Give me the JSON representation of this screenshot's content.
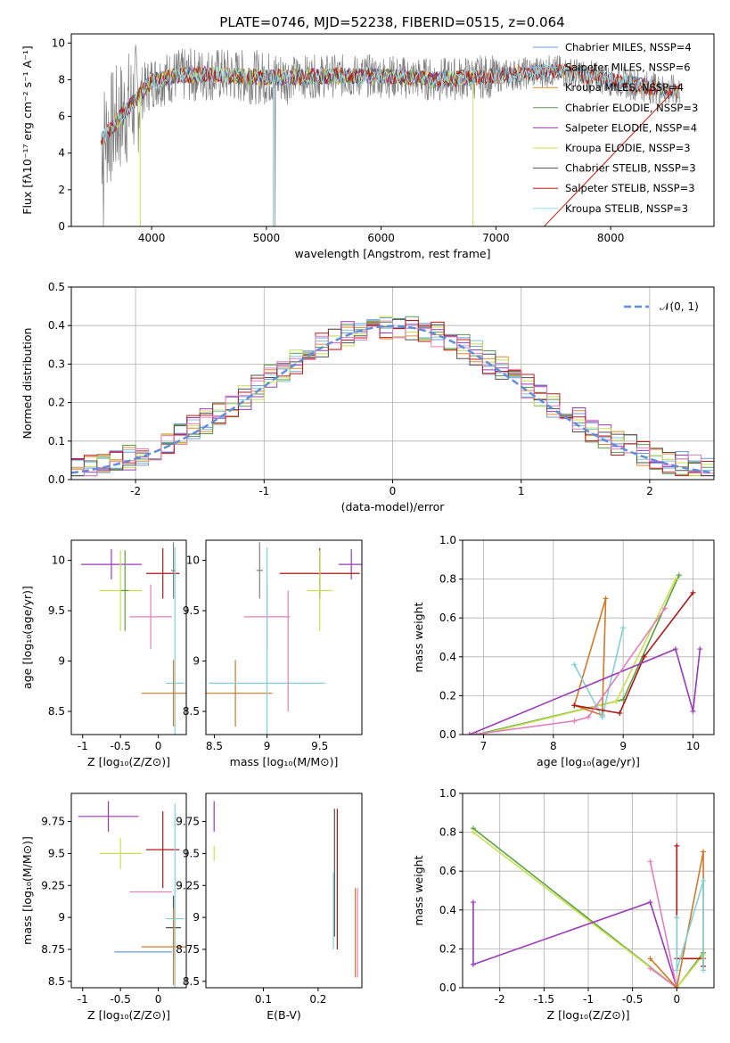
{
  "figure_title": "PLATE=0746, MJD=52238, FIBERID=0515, z=0.064",
  "colors": {
    "chabrier_miles": "#6a9bd8",
    "salpeter_miles": "#82c3d9",
    "kroupa_miles": "#e08a30",
    "chabrier_elodie": "#5a9a50",
    "salpeter_elodie": "#9a3ab8",
    "kroupa_elodie": "#c8e050",
    "chabrier_stelib": "#505050",
    "salpeter_stelib": "#c01818",
    "kroupa_stelib": "#a0dcea",
    "data": "#808080",
    "pink": "#e27fbf",
    "cyan": "#80d0d8",
    "olive": "#a8c050",
    "orange": "#cf7a2a",
    "purple": "#9a3ab8",
    "darkred": "#aa1818",
    "green": "#5aa040",
    "lime": "#c8e050",
    "gauss": "#5f8fd8"
  },
  "chart_data": [
    {
      "id": "spectrum",
      "type": "line",
      "title": "PLATE=0746, MJD=52238, FIBERID=0515, z=0.064",
      "xlabel": "wavelength [Angstrom, rest frame]",
      "ylabel": "Flux [fλ10⁻¹⁷ erg cm⁻² s⁻¹ A⁻¹]",
      "xlim": [
        3300,
        8900
      ],
      "ylim": [
        0,
        10.5
      ],
      "xticks": [
        4000,
        5000,
        6000,
        7000,
        8000
      ],
      "yticks": [
        0,
        2,
        4,
        6,
        8,
        10
      ],
      "legend_position": "right",
      "legend": [
        "Chabrier MILES, N_SSP=4",
        "Salpeter MILES, N_SSP=6",
        "Kroupa MILES, N_SSP=4",
        "Chabrier ELODIE, N_SSP=3",
        "Salpeter ELODIE, N_SSP=4",
        "Kroupa ELODIE, N_SSP=3",
        "Chabrier STELIB, N_SSP=3",
        "Salpeter STELIB, N_SSP=3",
        "Kroupa STELIB, N_SSP=3"
      ],
      "continuum": [
        [
          3600,
          5.0
        ],
        [
          3800,
          6.5
        ],
        [
          4000,
          7.9
        ],
        [
          4200,
          8.2
        ],
        [
          4500,
          8.3
        ],
        [
          5000,
          8.1
        ],
        [
          5500,
          8.2
        ],
        [
          6000,
          8.2
        ],
        [
          6500,
          8.0
        ],
        [
          7000,
          8.2
        ],
        [
          7500,
          8.5
        ],
        [
          8000,
          8.0
        ],
        [
          8500,
          7.4
        ]
      ]
    },
    {
      "id": "residual-hist",
      "type": "bar",
      "xlabel": "(data-model)/error",
      "ylabel": "Normed distribution",
      "xlim": [
        -2.5,
        2.5
      ],
      "ylim": [
        0,
        0.5
      ],
      "xticks": [
        -2,
        -1,
        0,
        1,
        2
      ],
      "yticks": [
        0.0,
        0.1,
        0.2,
        0.3,
        0.4,
        0.5
      ],
      "grid": true,
      "legend": [
        "N(0,1)"
      ],
      "legend_position": "top-right"
    },
    {
      "id": "age-vs-z",
      "type": "scatter",
      "xlabel": "Z [log₁₀(Z/Z⊙)]",
      "ylabel": "age  [log₁₀(age/yr)]",
      "xlim": [
        -1.15,
        0.37
      ],
      "ylim": [
        8.27,
        10.2
      ],
      "xticks": [
        -1.0,
        -0.5,
        0.0
      ],
      "yticks": [
        8.5,
        9.0,
        9.5,
        10.0
      ],
      "points": [
        {
          "x": -0.62,
          "y": 9.96,
          "xerr": 0.4,
          "yerr": 0.15,
          "color": "#9a3ab8"
        },
        {
          "x": -0.5,
          "y": 9.7,
          "xerr": 0.28,
          "yerr": 0.4,
          "color": "#c8e050"
        },
        {
          "x": -0.44,
          "y": 9.7,
          "xerr": 0.05,
          "yerr": 0.4,
          "color": "#5aa040"
        },
        {
          "x": -0.1,
          "y": 9.44,
          "xerr": 0.28,
          "yerr": 0.32,
          "color": "#e27fbf"
        },
        {
          "x": 0.06,
          "y": 9.87,
          "xerr": 0.22,
          "yerr": 0.25,
          "color": "#aa1818"
        },
        {
          "x": 0.2,
          "y": 9.9,
          "xerr": 0.03,
          "yerr": 0.28,
          "color": "#808080"
        },
        {
          "x": 0.22,
          "y": 8.78,
          "xerr": 0.12,
          "yerr": 1.35,
          "color": "#80d0d8"
        },
        {
          "x": 0.2,
          "y": 8.68,
          "xerr": 0.42,
          "yerr": 0.33,
          "color": "#cf7a2a"
        }
      ]
    },
    {
      "id": "age-vs-mass",
      "type": "scatter",
      "xlabel": "mass [log₁₀(M/M⊙)]",
      "ylabel": "",
      "xlim": [
        8.42,
        9.9
      ],
      "ylim": [
        8.27,
        10.2
      ],
      "xticks": [
        8.5,
        9.0,
        9.5
      ],
      "yticks": [
        8.5,
        9.0,
        9.5,
        10.0
      ],
      "points": [
        {
          "x": 9.8,
          "y": 9.96,
          "xerr": 0.12,
          "yerr": 0.15,
          "color": "#9a3ab8"
        },
        {
          "x": 9.5,
          "y": 9.87,
          "xerr": 0.38,
          "yerr": 0.25,
          "color": "#aa1818"
        },
        {
          "x": 9.5,
          "y": 9.7,
          "xerr": 0.12,
          "yerr": 0.4,
          "color": "#c8e050"
        },
        {
          "x": 9.0,
          "y": 9.44,
          "xerr": 0.22,
          "yerr": 0.32,
          "color": "#e27fbf"
        },
        {
          "x": 8.7,
          "y": 8.68,
          "xerr": 0.35,
          "yerr": 0.33,
          "color": "#cf7a2a"
        },
        {
          "x": 8.93,
          "y": 9.9,
          "xerr": 0.03,
          "yerr": 0.28,
          "color": "#808080"
        },
        {
          "x": 9.0,
          "y": 8.78,
          "xerr": 0.55,
          "yerr": 1.35,
          "color": "#80d0d8"
        },
        {
          "x": 9.2,
          "y": 9.1,
          "xerr": 0.0,
          "yerr": 0.6,
          "color": "#e27fbf"
        }
      ]
    },
    {
      "id": "weight-vs-age",
      "type": "line",
      "xlabel": "age  [log₁₀(age/yr)]",
      "ylabel": "mass weight",
      "xlim": [
        6.7,
        10.3
      ],
      "ylim": [
        0,
        1.0
      ],
      "xticks": [
        7,
        8,
        9,
        10
      ],
      "yticks": [
        0.0,
        0.2,
        0.4,
        0.6,
        0.8,
        1.0
      ],
      "grid": true,
      "series": [
        {
          "color": "#5aa040",
          "x": [
            6.9,
            9.0,
            9.8
          ],
          "y": [
            0.0,
            0.18,
            0.82
          ]
        },
        {
          "color": "#c8e050",
          "x": [
            6.95,
            8.9,
            9.75
          ],
          "y": [
            0.0,
            0.17,
            0.8
          ]
        },
        {
          "color": "#cf7a2a",
          "x": [
            8.3,
            8.75,
            8.7,
            8.3
          ],
          "y": [
            0.15,
            0.7,
            0.1,
            0.15
          ]
        },
        {
          "color": "#80d0d8",
          "x": [
            8.3,
            8.7,
            9.0,
            8.7
          ],
          "y": [
            0.36,
            0.09,
            0.55,
            0.09
          ]
        },
        {
          "color": "#aa1818",
          "x": [
            8.3,
            8.95,
            9.3,
            10.0
          ],
          "y": [
            0.15,
            0.11,
            0.4,
            0.73
          ]
        },
        {
          "color": "#9a3ab8",
          "x": [
            6.8,
            9.75,
            10.0,
            10.1
          ],
          "y": [
            0.0,
            0.44,
            0.12,
            0.44
          ]
        },
        {
          "color": "#e27fbf",
          "x": [
            6.85,
            8.3,
            8.5,
            9.6
          ],
          "y": [
            0.0,
            0.07,
            0.09,
            0.65
          ]
        }
      ]
    },
    {
      "id": "mass-vs-z",
      "type": "scatter",
      "xlabel": "Z [log₁₀(Z/Z⊙)]",
      "ylabel": "mass [log₁₀(M/M⊙)]",
      "xlim": [
        -1.15,
        0.37
      ],
      "ylim": [
        8.45,
        9.97
      ],
      "xticks": [
        -1.0,
        -0.5,
        0.0
      ],
      "yticks": [
        8.5,
        8.75,
        9.0,
        9.25,
        9.5,
        9.75
      ],
      "points": [
        {
          "x": -0.66,
          "y": 9.79,
          "xerr": 0.4,
          "yerr": 0.12,
          "color": "#9a3ab8"
        },
        {
          "x": -0.5,
          "y": 9.5,
          "xerr": 0.28,
          "yerr": 0.12,
          "color": "#c8e050"
        },
        {
          "x": -0.1,
          "y": 9.2,
          "xerr": 0.28,
          "yerr": 0.0,
          "color": "#e27fbf"
        },
        {
          "x": 0.06,
          "y": 9.53,
          "xerr": 0.22,
          "yerr": 0.3,
          "color": "#aa1818"
        },
        {
          "x": 0.2,
          "y": 8.92,
          "xerr": 0.1,
          "yerr": 0.25,
          "color": "#505050"
        },
        {
          "x": 0.2,
          "y": 8.77,
          "xerr": 0.42,
          "yerr": 0.3,
          "color": "#cf7a2a"
        },
        {
          "x": 0.22,
          "y": 8.99,
          "xerr": 0.12,
          "yerr": 0.9,
          "color": "#80d0d8"
        },
        {
          "x": -0.2,
          "y": 8.73,
          "xerr": 0.38,
          "yerr": 0.0,
          "color": "#6a9bd8"
        }
      ]
    },
    {
      "id": "mass-vs-ebv",
      "type": "scatter",
      "xlabel": "E(B-V)",
      "ylabel": "",
      "xlim": [
        -0.005,
        0.28
      ],
      "ylim": [
        8.45,
        9.97
      ],
      "xticks": [
        0.1,
        0.2
      ],
      "yticks": [
        8.5,
        8.75,
        9.0,
        9.25,
        9.5,
        9.75
      ],
      "points": [
        {
          "x": 0.01,
          "y": 9.79,
          "xerr": 0.0,
          "yerr": 0.12,
          "color": "#9a3ab8"
        },
        {
          "x": 0.01,
          "y": 9.5,
          "xerr": 0.0,
          "yerr": 0.06,
          "color": "#c8e050"
        },
        {
          "x": 0.23,
          "y": 9.35,
          "xerr": 0.0,
          "yerr": 0.5,
          "color": "#505050"
        },
        {
          "x": 0.235,
          "y": 9.3,
          "xerr": 0.0,
          "yerr": 0.55,
          "color": "#aa1818"
        },
        {
          "x": 0.228,
          "y": 9.05,
          "xerr": 0.0,
          "yerr": 0.3,
          "color": "#80d0d8"
        },
        {
          "x": 0.268,
          "y": 8.88,
          "xerr": 0.0,
          "yerr": 0.35,
          "color": "#cf7a2a"
        },
        {
          "x": 0.272,
          "y": 8.88,
          "xerr": 0.0,
          "yerr": 0.35,
          "color": "#e27fbf"
        }
      ]
    },
    {
      "id": "weight-vs-z",
      "type": "line",
      "xlabel": "Z [log₁₀(Z/Z⊙)]",
      "ylabel": "mass weight",
      "xlim": [
        -2.42,
        0.42
      ],
      "ylim": [
        0,
        1.0
      ],
      "xticks": [
        -2.0,
        -1.5,
        -1.0,
        -0.5,
        0.0
      ],
      "yticks": [
        0.0,
        0.2,
        0.4,
        0.6,
        0.8,
        1.0
      ],
      "grid": true,
      "series": [
        {
          "color": "#5aa040",
          "x": [
            -2.3,
            0.0,
            0.3
          ],
          "y": [
            0.82,
            0.0,
            0.18
          ]
        },
        {
          "color": "#c8e050",
          "x": [
            -2.3,
            0.0,
            0.3
          ],
          "y": [
            0.8,
            0.0,
            0.17
          ]
        },
        {
          "color": "#9a3ab8",
          "x": [
            -2.3,
            -2.3,
            -0.3,
            0.0
          ],
          "y": [
            0.44,
            0.12,
            0.44,
            0.0
          ]
        },
        {
          "color": "#e27fbf",
          "x": [
            -0.3,
            0.0,
            -0.3
          ],
          "y": [
            0.65,
            0.0,
            0.1
          ]
        },
        {
          "color": "#aa1818",
          "x": [
            0.0,
            0.0,
            0.3,
            0.3
          ],
          "y": [
            0.73,
            0.15,
            0.15,
            0.11
          ]
        },
        {
          "color": "#cf7a2a",
          "x": [
            -0.3,
            0.0,
            0.3,
            0.3
          ],
          "y": [
            0.15,
            0.0,
            0.7,
            0.15
          ]
        },
        {
          "color": "#80d0d8",
          "x": [
            0.0,
            0.0,
            0.3,
            0.3
          ],
          "y": [
            0.36,
            0.09,
            0.55,
            0.09
          ]
        }
      ]
    }
  ]
}
